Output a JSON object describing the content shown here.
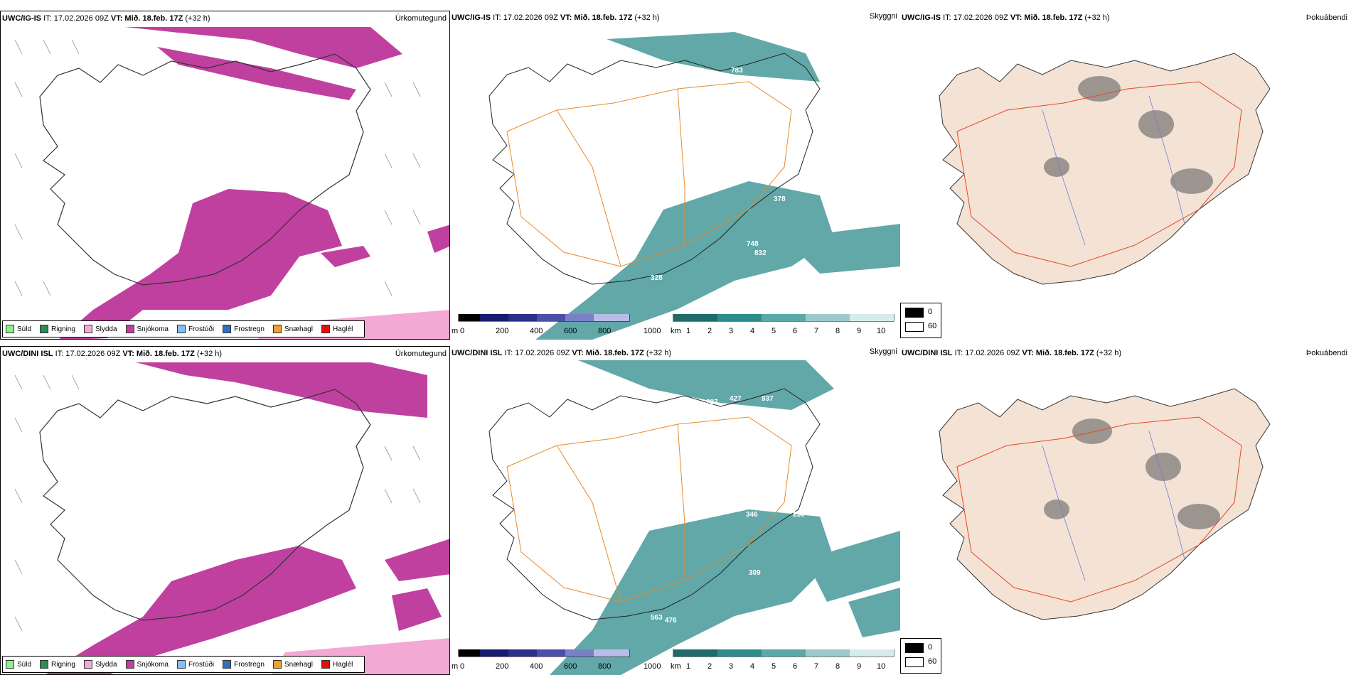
{
  "rows": [
    {
      "model": "UWC/IG-IS",
      "run": "IT: 17.02.2026 09Z",
      "vt": "VT: Mið. 18.feb. 17Z",
      "lead": "(+32 h)",
      "precip_var": "Úrkomutegund",
      "vis_var": "Skyggni",
      "fog_var": "Þokuábendi",
      "cloud_base_labels": [
        "783",
        "378",
        "748",
        "832",
        "328"
      ]
    },
    {
      "model": "UWC/DINI ISL",
      "run": "IT: 17.02.2026 09Z",
      "vt": "VT: Mið. 18.feb. 17Z",
      "lead": "(+32 h)",
      "precip_var": "Úrkomutegund",
      "vis_var": "Skyggni",
      "fog_var": "Þokuábendi",
      "cloud_base_labels": [
        "237",
        "427",
        "937",
        "346",
        "250",
        "309",
        "563",
        "476"
      ]
    }
  ],
  "precip_legend": [
    {
      "label": "Súld",
      "color": "#90ee90"
    },
    {
      "label": "Rigning",
      "color": "#2e8b57"
    },
    {
      "label": "Slydda",
      "color": "#f4a8d4"
    },
    {
      "label": "Snjókoma",
      "color": "#c040a0"
    },
    {
      "label": "Frostúði",
      "color": "#87bdf0"
    },
    {
      "label": "Frostregn",
      "color": "#2f6fc0"
    },
    {
      "label": "Snæhagl",
      "color": "#f0a030"
    },
    {
      "label": "Haglél",
      "color": "#e01010"
    }
  ],
  "cloudbase_scale": {
    "unit": "m",
    "ticks": [
      "0",
      "200",
      "400",
      "600",
      "800",
      "1000"
    ]
  },
  "visibility_scale": {
    "unit": "km",
    "ticks": [
      "1",
      "2",
      "3",
      "4",
      "5",
      "6",
      "7",
      "8",
      "9",
      "10"
    ]
  },
  "fog_scale": {
    "ticks": [
      "0",
      "60"
    ]
  },
  "colors": {
    "snow": "#c040a0",
    "sleet": "#f4a8d4",
    "visibility": "#2e8b8b",
    "roads": "#e88a2a",
    "land": "#f4e2d4",
    "cloudbase": "#2a2f8a"
  }
}
